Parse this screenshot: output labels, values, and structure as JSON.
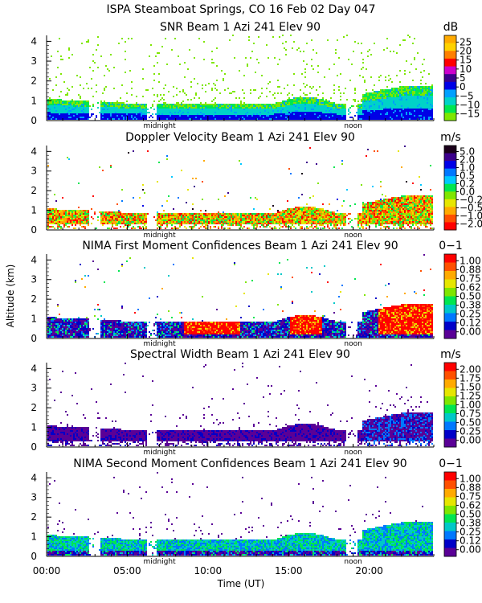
{
  "figure": {
    "title": "ISPA Steamboat Springs, CO   16 Feb 02 Day 047",
    "ylabel": "Altitude (km)",
    "xlabel": "Time (UT)",
    "x_ticks": [
      "00:00",
      "05:00",
      "10:00",
      "15:00",
      "20:00"
    ],
    "midnight_label": "midnight",
    "noon_label": "noon"
  },
  "chart_data": [
    {
      "type": "heatmap",
      "title": "SNR Beam 1 Azi 241 Elev 90",
      "units": "dB",
      "ylim": [
        0,
        4.3
      ],
      "xlim": [
        0,
        24
      ],
      "y_ticks": [
        "0",
        "1",
        "2",
        "3",
        "4"
      ],
      "colorbar": {
        "labels": [
          "25",
          "20",
          "15",
          "10",
          "5",
          "0",
          "−5",
          "−10",
          "−15"
        ],
        "colors": [
          "#ffaa00",
          "#ffd200",
          "#ff8000",
          "#ff0000",
          "#cc00cc",
          "#3c008c",
          "#0000e6",
          "#00a0ff",
          "#00d2c8",
          "#00e650",
          "#7fe600"
        ]
      }
    },
    {
      "type": "heatmap",
      "title": "Doppler Velocity Beam 1 Azi 241 Elev 90",
      "units": "m/s",
      "ylim": [
        0,
        4.3
      ],
      "xlim": [
        0,
        24
      ],
      "y_ticks": [
        "0",
        "1",
        "2",
        "3",
        "4"
      ],
      "colorbar": {
        "labels": [
          "5.0",
          "2.0",
          "1.0",
          "0.5",
          "0.2",
          "0.0",
          "−0.2",
          "−0.5",
          "−1.0",
          "−2.0"
        ],
        "colors": [
          "#1a001a",
          "#3c008c",
          "#0000e6",
          "#0078ff",
          "#00c8ff",
          "#00e650",
          "#7fe600",
          "#e6e600",
          "#ffaa00",
          "#ff5000",
          "#ff0000"
        ]
      }
    },
    {
      "type": "heatmap",
      "title": "NIMA First Moment Confidences Beam 1 Azi 241 Elev 90",
      "units": "0−1",
      "ylim": [
        0,
        4.3
      ],
      "xlim": [
        0,
        24
      ],
      "y_ticks": [
        "0",
        "1",
        "2",
        "3",
        "4"
      ],
      "colorbar": {
        "labels": [
          "1.00",
          "0.88",
          "0.75",
          "0.62",
          "0.50",
          "0.38",
          "0.25",
          "0.12",
          "0.00"
        ],
        "colors": [
          "#ff0000",
          "#ff5000",
          "#ffaa00",
          "#e6e600",
          "#7fe600",
          "#00e650",
          "#00c8c8",
          "#0078ff",
          "#0000c8",
          "#5a0096"
        ]
      }
    },
    {
      "type": "heatmap",
      "title": "Spectral Width Beam 1 Azi 241 Elev 90",
      "units": "m/s",
      "ylim": [
        0,
        4.3
      ],
      "xlim": [
        0,
        24
      ],
      "y_ticks": [
        "0",
        "1",
        "2",
        "3",
        "4"
      ],
      "colorbar": {
        "labels": [
          "2.00",
          "1.75",
          "1.50",
          "1.25",
          "1.00",
          "0.75",
          "0.50",
          "0.25",
          "0.00"
        ],
        "colors": [
          "#ff0000",
          "#ff5000",
          "#ffaa00",
          "#e6e600",
          "#7fe600",
          "#00e650",
          "#00c8c8",
          "#0078ff",
          "#0000c8",
          "#5a0096"
        ]
      }
    },
    {
      "type": "heatmap",
      "title": "NIMA Second Moment Confidences Beam 1 Azi 241 Elev 90",
      "units": "0−1",
      "ylim": [
        0,
        4.3
      ],
      "xlim": [
        0,
        24
      ],
      "y_ticks": [
        "0",
        "1",
        "2",
        "3",
        "4"
      ],
      "colorbar": {
        "labels": [
          "1.00",
          "0.88",
          "0.75",
          "0.62",
          "0.50",
          "0.38",
          "0.25",
          "0.12",
          "0.00"
        ],
        "colors": [
          "#ff0000",
          "#ff5000",
          "#ffaa00",
          "#e6e600",
          "#7fe600",
          "#00e650",
          "#00c8c8",
          "#0078ff",
          "#0000c8",
          "#5a0096"
        ]
      }
    }
  ]
}
